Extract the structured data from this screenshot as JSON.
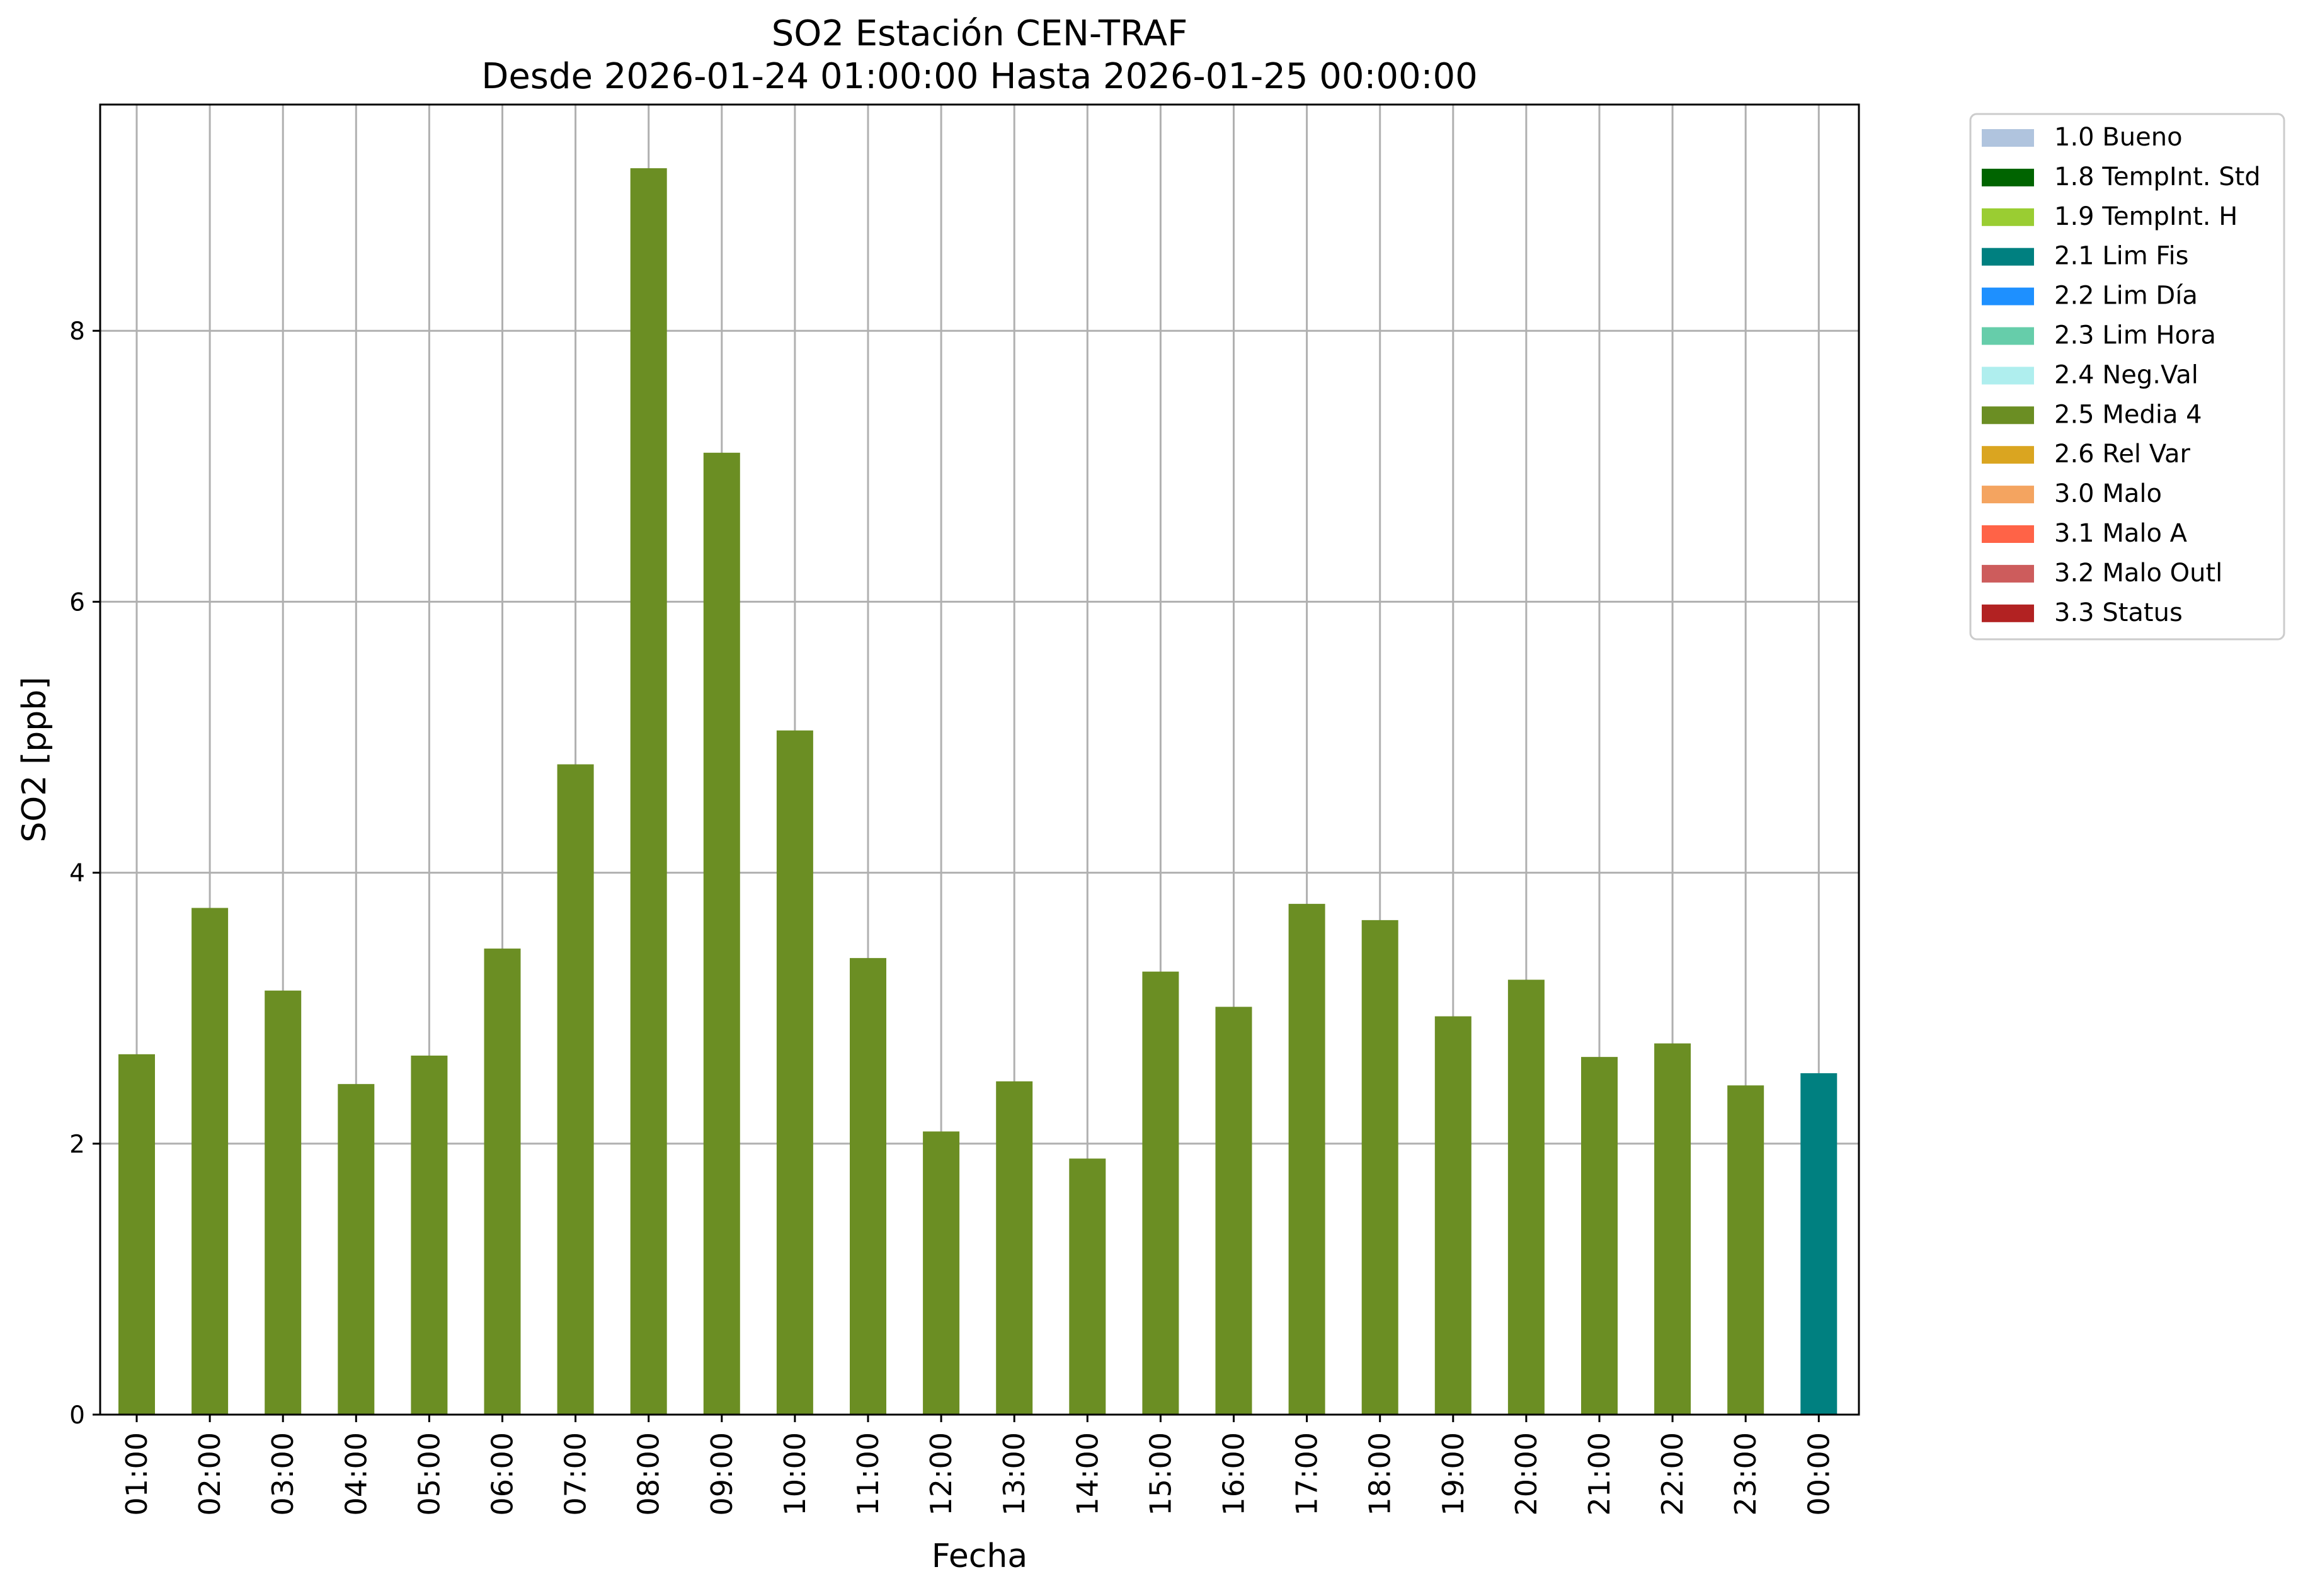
{
  "chart_data": {
    "type": "bar",
    "title": "SO2 Estación CEN-TRAF",
    "subtitle": "Desde 2026-01-24 01:00:00 Hasta 2026-01-25 00:00:00",
    "xlabel": "Fecha",
    "ylabel": "SO2 [ppb]",
    "ylim": [
      0,
      9.67
    ],
    "yticks": [
      0,
      2,
      4,
      6,
      8
    ],
    "grid": true,
    "legend_position": "outside-top-right",
    "categories": [
      "01:00",
      "02:00",
      "03:00",
      "04:00",
      "05:00",
      "06:00",
      "07:00",
      "08:00",
      "09:00",
      "10:00",
      "11:00",
      "12:00",
      "13:00",
      "14:00",
      "15:00",
      "16:00",
      "17:00",
      "18:00",
      "19:00",
      "20:00",
      "21:00",
      "22:00",
      "23:00",
      "00:00"
    ],
    "values": [
      2.66,
      3.74,
      3.13,
      2.44,
      2.65,
      3.44,
      4.8,
      9.2,
      7.1,
      5.05,
      3.37,
      2.09,
      2.46,
      1.89,
      3.27,
      3.01,
      3.77,
      3.65,
      2.94,
      3.21,
      2.64,
      2.74,
      2.43,
      2.52
    ],
    "bar_flags": [
      "2.5 Media 4",
      "2.5 Media 4",
      "2.5 Media 4",
      "2.5 Media 4",
      "2.5 Media 4",
      "2.5 Media 4",
      "2.5 Media 4",
      "2.5 Media 4",
      "2.5 Media 4",
      "2.5 Media 4",
      "2.5 Media 4",
      "2.5 Media 4",
      "2.5 Media 4",
      "2.5 Media 4",
      "2.5 Media 4",
      "2.5 Media 4",
      "2.5 Media 4",
      "2.5 Media 4",
      "2.5 Media 4",
      "2.5 Media 4",
      "2.5 Media 4",
      "2.5 Media 4",
      "2.5 Media 4",
      "2.1 Lim Fis"
    ],
    "legend": [
      {
        "label": "1.0 Bueno",
        "color": "#b0c4de"
      },
      {
        "label": "1.8 TempInt. Std",
        "color": "#006400"
      },
      {
        "label": "1.9 TempInt. H",
        "color": "#9acd32"
      },
      {
        "label": "2.1 Lim Fis",
        "color": "#008080"
      },
      {
        "label": "2.2 Lim Día",
        "color": "#1e90ff"
      },
      {
        "label": "2.3 Lim Hora",
        "color": "#66cdaa"
      },
      {
        "label": "2.4 Neg.Val",
        "color": "#afeeee"
      },
      {
        "label": "2.5 Media 4",
        "color": "#6b8e23"
      },
      {
        "label": "2.6 Rel Var",
        "color": "#daa520"
      },
      {
        "label": "3.0 Malo",
        "color": "#f4a460"
      },
      {
        "label": "3.1 Malo A",
        "color": "#ff6347"
      },
      {
        "label": "3.2 Malo Outl",
        "color": "#cd5c5c"
      },
      {
        "label": "3.3 Status",
        "color": "#b22222"
      }
    ]
  }
}
